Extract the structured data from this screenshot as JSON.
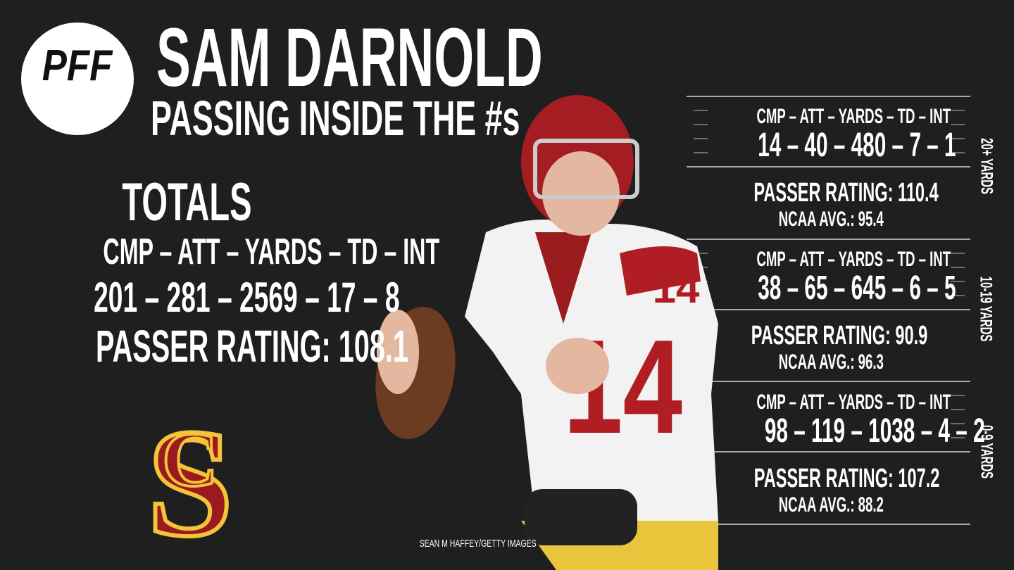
{
  "logo": "PFF",
  "header": {
    "title": "SAM DARNOLD",
    "subtitle": "PASSING INSIDE THE #s"
  },
  "totals": {
    "title": "TOTALS",
    "columns": "CMP – ATT – YARDS – TD – INT",
    "stats": "201 – 281 – 2569 – 17 – 8",
    "passer_rating": "PASSER RATING: 108.1"
  },
  "zones": [
    {
      "label": "20+ YARDS",
      "columns": "CMP – ATT – YARDS – TD – INT",
      "stats": "14 – 40 – 480 – 7 – 1",
      "passer_rating": "PASSER RATING: 110.4",
      "ncaa_avg": "NCAA AVG.: 95.4"
    },
    {
      "label": "10-19 YARDS",
      "columns": "CMP – ATT – YARDS – TD – INT",
      "stats": "38 – 65 – 645 – 6 – 5",
      "passer_rating": "PASSER RATING: 90.9",
      "ncaa_avg": "NCAA AVG.: 96.3"
    },
    {
      "label": "0-9 YARDS",
      "columns": "CMP – ATT – YARDS – TD – INT",
      "stats": "98 – 119 – 1038 – 4 – 2",
      "passer_rating": "PASSER RATING: 107.2",
      "ncaa_avg": "NCAA AVG.: 88.2"
    }
  ],
  "credit": "SEAN M HAFFEY/GETTY IMAGES"
}
